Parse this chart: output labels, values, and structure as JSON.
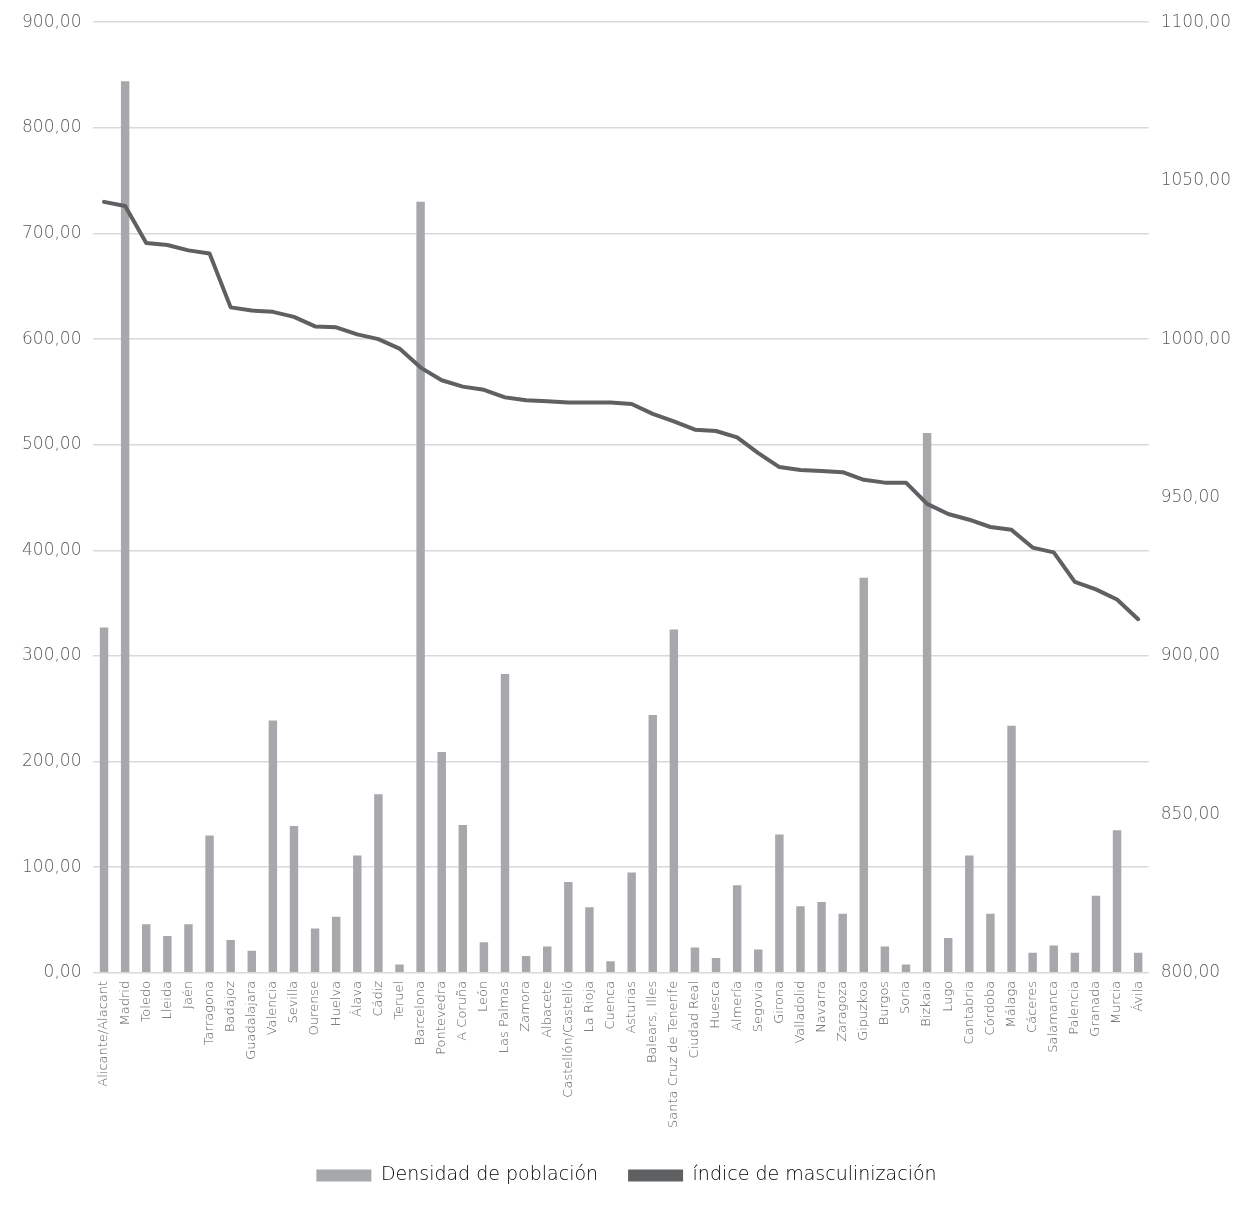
{
  "chart_data": {
    "type": "bar",
    "categories": [
      "Alicante/Alacant",
      "Madrid",
      "Toledo",
      "Lleida",
      "Jaén",
      "Tarragona",
      "Badajoz",
      "Guadalajara",
      "Valencia",
      "Sevilla",
      "Ourense",
      "Huelva",
      "Álava",
      "Cádiz",
      "Teruel",
      "Barcelona",
      "Pontevedra",
      "A Coruña",
      "León",
      "Las Palmas",
      "Zamora",
      "Albacete",
      "Castellón/Castelló",
      "La Rioja",
      "Cuenca",
      "Asturias",
      "Balears, Illes",
      "Santa Cruz de Tenerife",
      "Ciudad Real",
      "Huesca",
      "Almería",
      "Segovia",
      "Girona",
      "Valladolid",
      "Navarra",
      "Zaragoza",
      "Gipuzkoa",
      "Burgos",
      "Soria",
      "Bizkaia",
      "Lugo",
      "Cantabria",
      "Córdoba",
      "Málaga",
      "Cáceres",
      "Salamanca",
      "Palencia",
      "Granada",
      "Murcia",
      "Ávila"
    ],
    "series": [
      {
        "name": "Densidad de población",
        "color": "#a6a8ab",
        "values": [
          327,
          844,
          46,
          35,
          46,
          130,
          31,
          21,
          239,
          139,
          42,
          53,
          111,
          169,
          8,
          730,
          209,
          140,
          29,
          283,
          16,
          25,
          86,
          62,
          11,
          95,
          244,
          325,
          24,
          14,
          83,
          22,
          131,
          63,
          67,
          56,
          374,
          25,
          8,
          511,
          33,
          111,
          56,
          234,
          19,
          26,
          19,
          73,
          135,
          19
        ]
      },
      {
        "name": "índice de masculinización",
        "type": "line",
        "axis": "y2",
        "color": "#5f6062",
        "values": [
          1043.3,
          1042,
          1030.3,
          1029.7,
          1028,
          1027,
          1010,
          1009,
          1008.6,
          1007,
          1004,
          1003.7,
          1001.5,
          1000,
          997,
          991,
          987,
          985,
          984,
          981.6,
          980.7,
          980.4,
          980,
          980,
          980,
          979.5,
          976.4,
          974,
          971.4,
          971,
          969,
          964,
          959.6,
          958.7,
          958.4,
          958,
          955.6,
          954.7,
          954.7,
          948,
          944.8,
          943,
          940.7,
          939.8,
          934.2,
          932.7,
          923.4,
          921,
          917.8,
          911.6
        ]
      }
    ],
    "ylim": [
      0,
      900
    ],
    "yticks": [
      {
        "value": 0,
        "label": "0,00"
      },
      {
        "value": 100,
        "label": "100,00"
      },
      {
        "value": 200,
        "label": "200,00"
      },
      {
        "value": 300,
        "label": "300,00"
      },
      {
        "value": 400,
        "label": "400,00"
      },
      {
        "value": 500,
        "label": "500,00"
      },
      {
        "value": 600,
        "label": "600,00"
      },
      {
        "value": 700,
        "label": "700,00"
      },
      {
        "value": 800,
        "label": "800,00"
      },
      {
        "value": 900,
        "label": "900,00"
      }
    ],
    "y2lim": [
      800,
      1100
    ],
    "y2ticks": [
      {
        "value": 800,
        "label": "800,00"
      },
      {
        "value": 850,
        "label": "850,00"
      },
      {
        "value": 900,
        "label": "900,00"
      },
      {
        "value": 950,
        "label": "950,00"
      },
      {
        "value": 1000,
        "label": "1000,00"
      },
      {
        "value": 1050,
        "label": "1050,00"
      },
      {
        "value": 1100,
        "label": "1100,00"
      }
    ],
    "grid": "y",
    "legend": "bottom",
    "marker": "none",
    "line_style": "solid"
  }
}
